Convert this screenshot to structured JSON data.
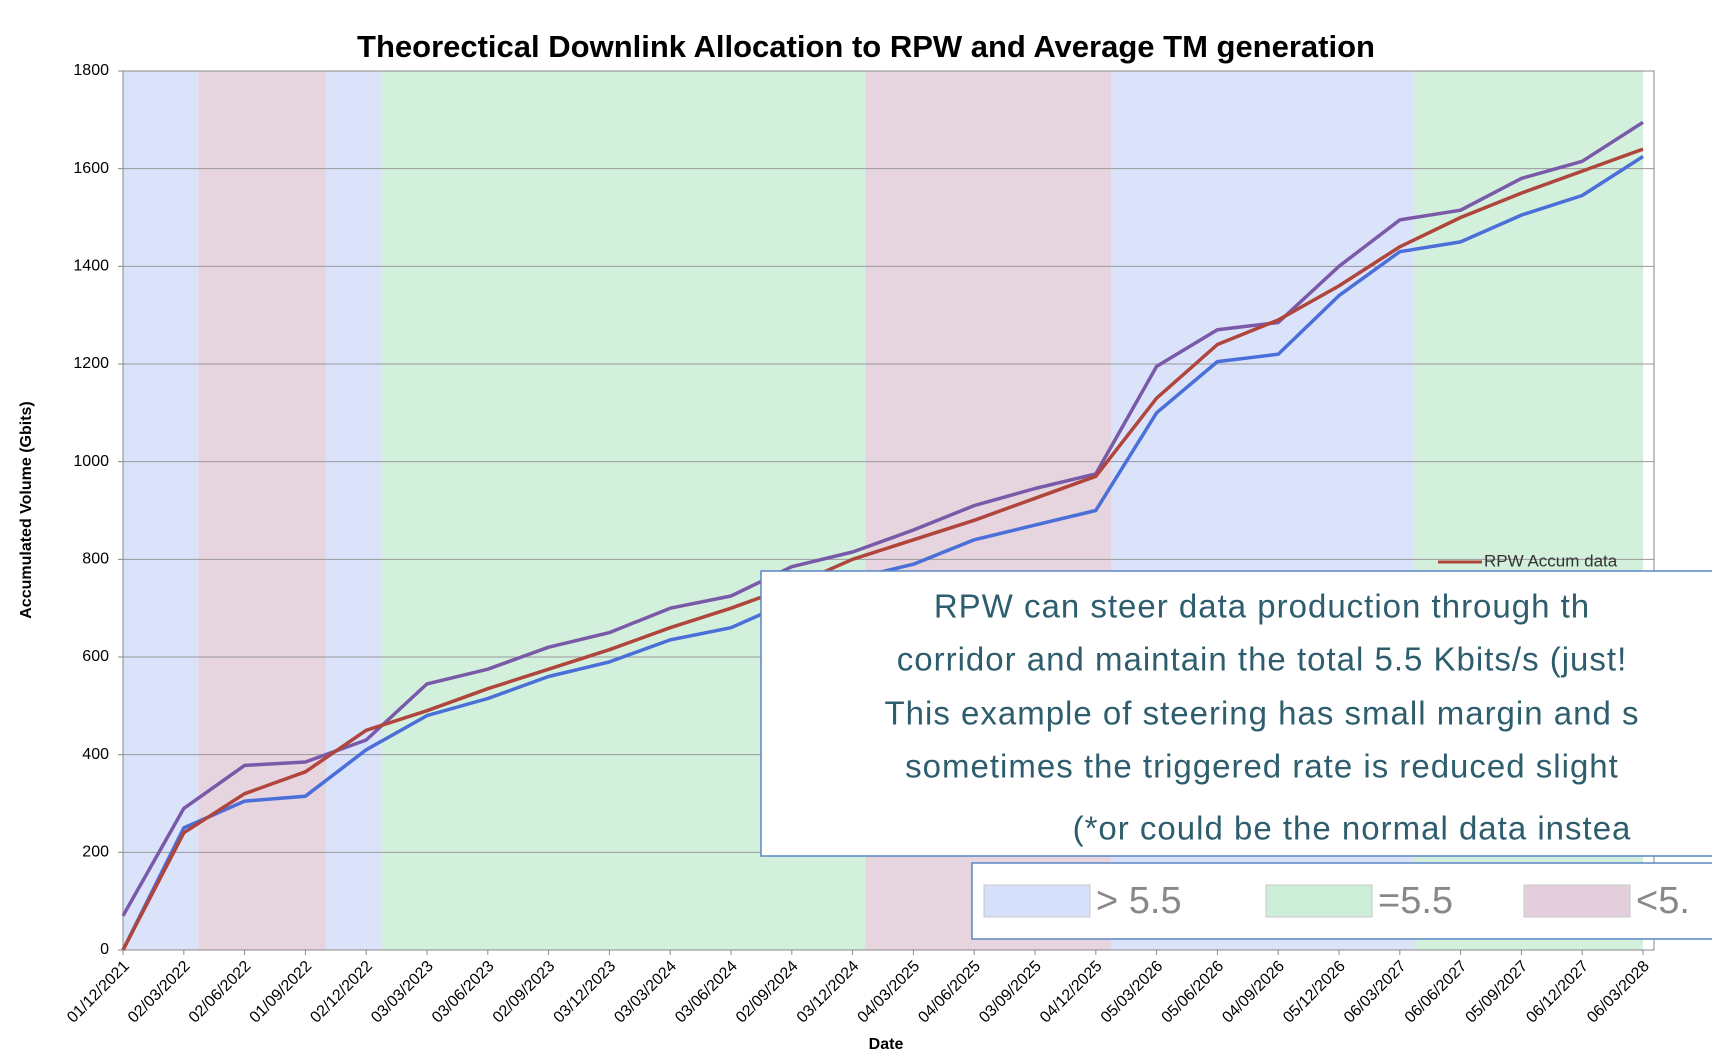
{
  "chart_data": {
    "type": "line",
    "title": "Theorectical Downlink Allocation to RPW and Average TM generation",
    "x_label": "Date",
    "y_label": "Accumulated Volume (Gbits)",
    "categories": [
      "01/12/2021",
      "02/03/2022",
      "02/06/2022",
      "01/09/2022",
      "02/12/2022",
      "03/03/2023",
      "03/06/2023",
      "02/09/2023",
      "03/12/2023",
      "03/03/2024",
      "03/06/2024",
      "02/09/2024",
      "03/12/2024",
      "04/03/2025",
      "04/06/2025",
      "03/09/2025",
      "04/12/2025",
      "05/03/2026",
      "05/06/2026",
      "04/09/2026",
      "05/12/2026",
      "06/03/2027",
      "06/06/2027",
      "05/09/2027",
      "06/12/2027",
      "06/03/2028"
    ],
    "series": [
      {
        "color": "#4a6fd8",
        "values": [
          0,
          250,
          305,
          315,
          410,
          480,
          515,
          560,
          590,
          635,
          660,
          715,
          760,
          790,
          840,
          870,
          900,
          1100,
          1205,
          1220,
          1340,
          1430,
          1450,
          1505,
          1545,
          1625
        ]
      },
      {
        "color": "#7a5aa8",
        "values": [
          70,
          290,
          378,
          385,
          430,
          545,
          575,
          620,
          650,
          700,
          725,
          785,
          815,
          860,
          910,
          945,
          975,
          1195,
          1270,
          1285,
          1400,
          1495,
          1515,
          1580,
          1615,
          1695
        ]
      },
      {
        "name": "RPW Accum  data",
        "color": "#b0453c",
        "values": [
          0,
          240,
          320,
          365,
          450,
          490,
          535,
          575,
          615,
          660,
          700,
          745,
          800,
          840,
          880,
          925,
          970,
          1130,
          1240,
          1290,
          1360,
          1440,
          1500,
          1550,
          1595,
          1640
        ]
      }
    ],
    "ylim": [
      0,
      1800
    ],
    "yticks": [
      0,
      200,
      400,
      600,
      800,
      1000,
      1200,
      1400,
      1600,
      1800
    ],
    "grid": true,
    "regions": [
      {
        "start": 0,
        "end": 1.24,
        "kind": 0
      },
      {
        "start": 1.24,
        "end": 3.34,
        "kind": 2
      },
      {
        "start": 3.34,
        "end": 4.25,
        "kind": 0
      },
      {
        "start": 4.25,
        "end": 12.21,
        "kind": 1
      },
      {
        "start": 12.21,
        "end": 16.25,
        "kind": 2
      },
      {
        "start": 16.25,
        "end": 21.24,
        "kind": 0
      },
      {
        "start": 21.24,
        "end": 25,
        "kind": 1
      }
    ],
    "region_legend": [
      {
        "label": "> 5.5",
        "color": "#d6e0fa"
      },
      {
        "label": "=5.5",
        "color": "#cdeed8"
      },
      {
        "label": "<5.",
        "color": "#e3cfdc"
      }
    ],
    "annotation": [
      "RPW can steer data production through th",
      "corridor and maintain the total 5.5 Kbits/s  (just!",
      "This example of steering has small margin and s",
      "sometimes the triggered rate is reduced slight",
      "(*or could be the normal data instea"
    ]
  }
}
